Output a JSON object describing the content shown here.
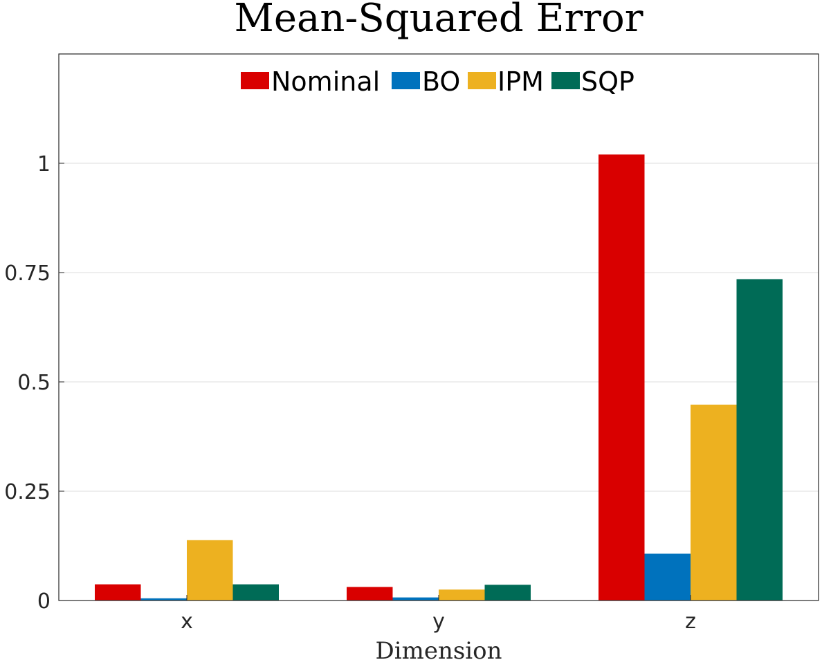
{
  "chart_data": {
    "type": "bar",
    "title": "Mean-Squared Error",
    "xlabel": "Dimension",
    "ylabel": "",
    "categories": [
      "x",
      "y",
      "z"
    ],
    "series": [
      {
        "name": "Nominal",
        "color": "#d90000",
        "values": [
          0.037,
          0.031,
          1.02
        ]
      },
      {
        "name": "BO",
        "color": "#0072bd",
        "values": [
          0.005,
          0.007,
          0.107
        ]
      },
      {
        "name": "IPM",
        "color": "#edb120",
        "values": [
          0.138,
          0.025,
          0.448
        ]
      },
      {
        "name": "SQP",
        "color": "#006b56",
        "values": [
          0.037,
          0.036,
          0.735
        ]
      }
    ],
    "ylim": [
      0,
      1.25
    ],
    "yticks": [
      0,
      0.25,
      0.5,
      0.75,
      1
    ],
    "ytick_labels": [
      "0",
      "0.25",
      "0.5",
      "0.75",
      "1"
    ],
    "grid": true,
    "legend_position": "top-center, horizontal"
  }
}
